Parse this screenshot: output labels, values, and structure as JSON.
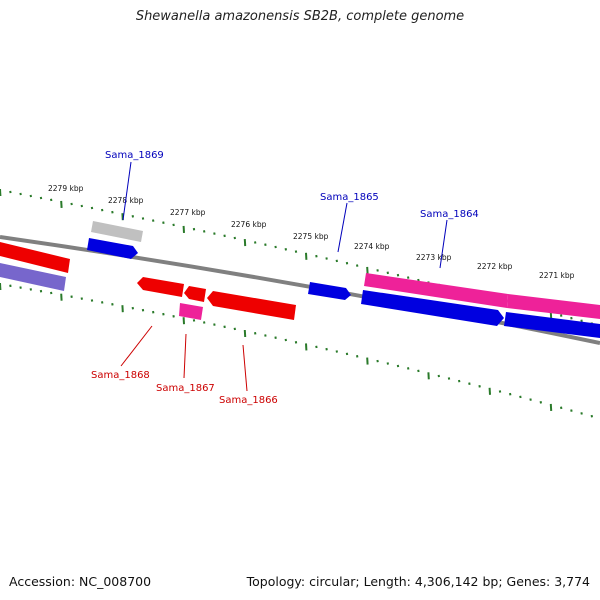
{
  "title": "Shewanella amazonensis SB2B, complete genome",
  "footer": {
    "accession": "Accession: NC_008700",
    "topology": "Topology: circular; Length: 4,306,142 bp; Genes: 3,774"
  },
  "colors": {
    "backbone": "#808080",
    "ticks": "#2a7a2a",
    "forward_label": "#0000bb",
    "reverse_label": "#cc0000",
    "gene_blue": "#0000e0",
    "gene_red": "#ee0000",
    "gene_pink": "#ee2299",
    "gene_gray": "#c0c0c0",
    "gene_purple": "#7766cc"
  },
  "kbp_labels": [
    "2279 kbp",
    "2278 kbp",
    "2277 kbp",
    "2276 kbp",
    "2275 kbp",
    "2274 kbp",
    "2273 kbp",
    "2272 kbp",
    "2271 kbp"
  ],
  "gene_labels": [
    {
      "name": "Sama_1869",
      "strand": "forward"
    },
    {
      "name": "Sama_1865",
      "strand": "forward"
    },
    {
      "name": "Sama_1864",
      "strand": "forward"
    },
    {
      "name": "Sama_1868",
      "strand": "reverse"
    },
    {
      "name": "Sama_1867",
      "strand": "reverse"
    },
    {
      "name": "Sama_1866",
      "strand": "reverse"
    }
  ]
}
